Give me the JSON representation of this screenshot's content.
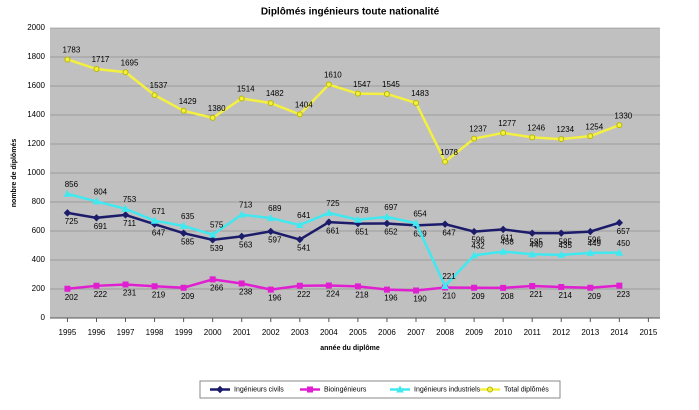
{
  "chart_data": {
    "type": "line",
    "title": "Diplômés ingénieurs toute nationalité",
    "x_label": "année du diplôme",
    "y_label": "nombre de diplômés",
    "x": [
      1995,
      1996,
      1997,
      1998,
      1999,
      2000,
      2001,
      2002,
      2003,
      2004,
      2005,
      2006,
      2007,
      2008,
      2009,
      2010,
      2011,
      2012,
      2013,
      2014
    ],
    "xlim": [
      1994.4,
      2015.4
    ],
    "xticks": [
      1995,
      1996,
      1997,
      1998,
      1999,
      2000,
      2001,
      2002,
      2003,
      2004,
      2005,
      2006,
      2007,
      2008,
      2009,
      2010,
      2011,
      2012,
      2013,
      2014,
      2015
    ],
    "ylim": [
      0,
      2000
    ],
    "yticks": [
      0,
      200,
      400,
      600,
      800,
      1000,
      1200,
      1400,
      1600,
      1800,
      2000
    ],
    "grid": true,
    "legend": "bottom",
    "series": [
      {
        "name": "Ingénieurs civils",
        "color": "#1c1c6b",
        "marker": "diamond",
        "values": [
          725,
          691,
          711,
          647,
          585,
          539,
          563,
          597,
          541,
          661,
          651,
          652,
          639,
          647,
          596,
          611,
          585,
          585,
          596,
          657
        ]
      },
      {
        "name": "Bioingénieurs",
        "color": "#e020d0",
        "marker": "square",
        "values": [
          202,
          222,
          231,
          219,
          209,
          266,
          238,
          196,
          222,
          224,
          218,
          196,
          190,
          210,
          209,
          208,
          221,
          214,
          209,
          223
        ]
      },
      {
        "name": "Ingénieurs industriels",
        "color": "#40e8f0",
        "marker": "triangle",
        "values": [
          856,
          804,
          753,
          671,
          635,
          575,
          713,
          689,
          641,
          725,
          678,
          697,
          654,
          221,
          432,
          458,
          440,
          435,
          449,
          450
        ]
      },
      {
        "name": "Total diplômés",
        "color": "#f4f040",
        "marker": "circle",
        "values": [
          1783,
          1717,
          1695,
          1537,
          1429,
          1380,
          1514,
          1482,
          1404,
          1610,
          1547,
          1545,
          1483,
          1078,
          1237,
          1277,
          1246,
          1234,
          1254,
          1330
        ]
      }
    ]
  }
}
